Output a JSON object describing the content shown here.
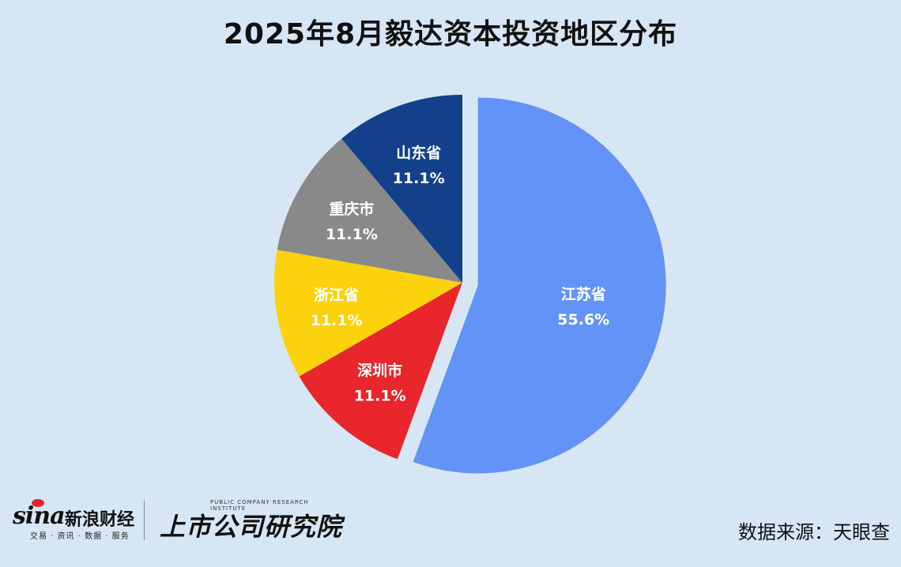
{
  "chart_data": {
    "type": "pie",
    "title": "2025年8月毅达资本投资地区分布",
    "slices": [
      {
        "label": "江苏省",
        "value": 55.6,
        "display": "55.6%",
        "color": "#6393f6",
        "exploded": true
      },
      {
        "label": "深圳市",
        "value": 11.1,
        "display": "11.1%",
        "color": "#e8262b",
        "exploded": false
      },
      {
        "label": "浙江省",
        "value": 11.1,
        "display": "11.1%",
        "color": "#fbd20b",
        "exploded": false
      },
      {
        "label": "重庆市",
        "value": 11.1,
        "display": "11.1%",
        "color": "#898989",
        "exploded": false
      },
      {
        "label": "山东省",
        "value": 11.1,
        "display": "11.1%",
        "color": "#133f8b",
        "exploded": false
      }
    ]
  },
  "footer": {
    "sina_logo": "sina",
    "sina_name": "新浪财经",
    "sina_tagline": "交易 · 资讯 · 数据 · 服务",
    "institute_en": "PUBLIC COMPANY RESEARCH INSTITUTE",
    "institute_cn": "上市公司研究院",
    "source": "数据来源：天眼查"
  }
}
